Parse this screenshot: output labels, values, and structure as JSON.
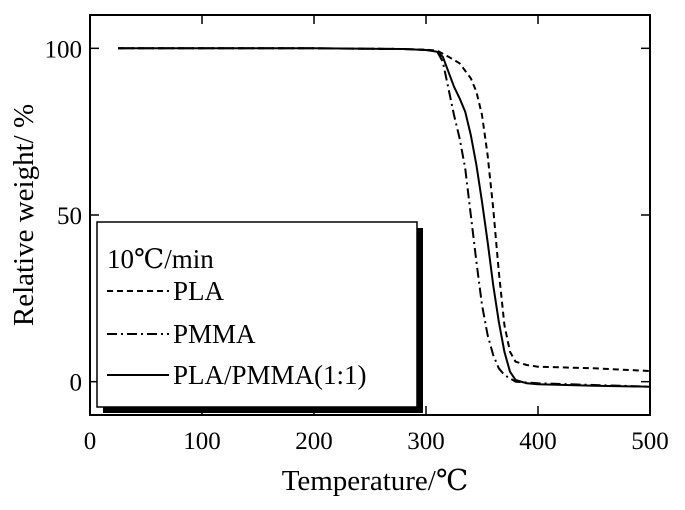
{
  "chart_data": {
    "type": "line",
    "title": "",
    "xlabel": "Temperature/℃",
    "ylabel": "Relative weight/ %",
    "xlim": [
      0,
      500
    ],
    "ylim": [
      -10,
      110
    ],
    "xticks": [
      0,
      100,
      200,
      300,
      400,
      500
    ],
    "yticks": [
      0,
      50,
      100
    ],
    "grid": false,
    "legend": {
      "placement": "bottom-left",
      "header": "10℃/min",
      "entries": [
        "PLA",
        "PMMA",
        "PLA/PMMA(1:1)"
      ]
    },
    "series": [
      {
        "name": "PLA",
        "style": "dashed",
        "x": [
          25,
          100,
          200,
          280,
          300,
          310,
          320,
          330,
          340,
          345,
          350,
          355,
          360,
          365,
          370,
          375,
          380,
          390,
          400,
          450,
          500
        ],
        "y": [
          100,
          100,
          100,
          99.8,
          99.6,
          99.3,
          97.5,
          95.5,
          91,
          87,
          80,
          68,
          52,
          33,
          17,
          9,
          6,
          5,
          4.5,
          4,
          3.2
        ]
      },
      {
        "name": "PMMA",
        "style": "dash-dot",
        "x": [
          25,
          100,
          200,
          280,
          300,
          310,
          315,
          320,
          325,
          330,
          335,
          340,
          345,
          350,
          355,
          360,
          365,
          370,
          380,
          400,
          450,
          500
        ],
        "y": [
          100,
          100,
          100,
          99.8,
          99.5,
          99,
          96,
          88,
          80,
          73,
          64,
          50,
          36,
          23,
          14,
          8,
          4,
          2,
          0,
          -0.5,
          -1,
          -1.5
        ]
      },
      {
        "name": "PLA/PMMA(1:1)",
        "style": "solid",
        "x": [
          25,
          100,
          200,
          280,
          300,
          310,
          315,
          320,
          325,
          330,
          335,
          340,
          345,
          350,
          355,
          360,
          365,
          370,
          375,
          380,
          390,
          400,
          450,
          500
        ],
        "y": [
          100,
          100,
          100,
          99.8,
          99.5,
          99,
          97.5,
          93,
          88.5,
          85,
          81,
          74,
          65,
          54,
          42,
          29,
          18,
          9,
          3,
          0.5,
          -0.5,
          -0.8,
          -1.2,
          -1.5
        ]
      }
    ]
  }
}
